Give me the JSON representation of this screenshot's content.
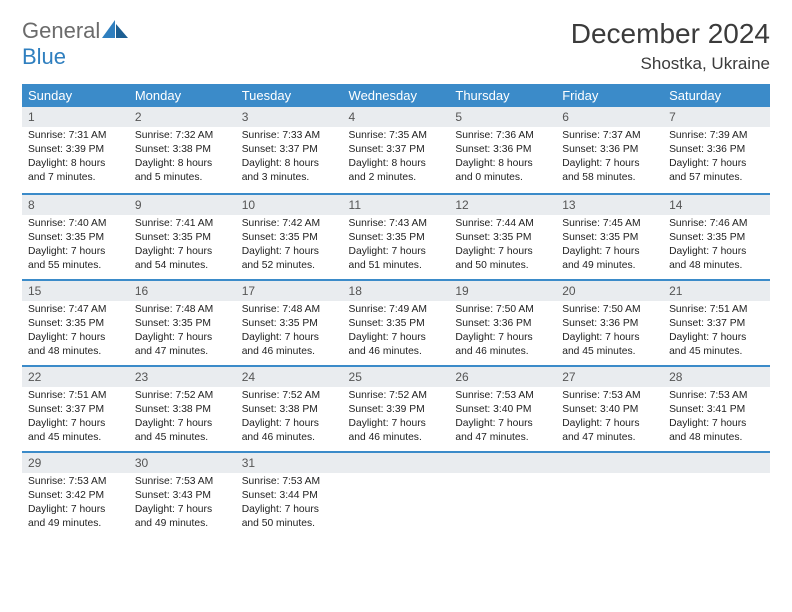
{
  "logo": {
    "text1": "General",
    "text2": "Blue"
  },
  "title": "December 2024",
  "location": "Shostka, Ukraine",
  "headers": [
    "Sunday",
    "Monday",
    "Tuesday",
    "Wednesday",
    "Thursday",
    "Friday",
    "Saturday"
  ],
  "colors": {
    "header_bg": "#3b8bc9",
    "header_text": "#ffffff",
    "daynum_bg": "#e9ecef",
    "row_divider": "#3b8bc9",
    "logo_gray": "#6b6b6b",
    "logo_blue": "#2f7fbf"
  },
  "weeks": [
    [
      {
        "n": "1",
        "sr": "7:31 AM",
        "ss": "3:39 PM",
        "dl": "8 hours and 7 minutes."
      },
      {
        "n": "2",
        "sr": "7:32 AM",
        "ss": "3:38 PM",
        "dl": "8 hours and 5 minutes."
      },
      {
        "n": "3",
        "sr": "7:33 AM",
        "ss": "3:37 PM",
        "dl": "8 hours and 3 minutes."
      },
      {
        "n": "4",
        "sr": "7:35 AM",
        "ss": "3:37 PM",
        "dl": "8 hours and 2 minutes."
      },
      {
        "n": "5",
        "sr": "7:36 AM",
        "ss": "3:36 PM",
        "dl": "8 hours and 0 minutes."
      },
      {
        "n": "6",
        "sr": "7:37 AM",
        "ss": "3:36 PM",
        "dl": "7 hours and 58 minutes."
      },
      {
        "n": "7",
        "sr": "7:39 AM",
        "ss": "3:36 PM",
        "dl": "7 hours and 57 minutes."
      }
    ],
    [
      {
        "n": "8",
        "sr": "7:40 AM",
        "ss": "3:35 PM",
        "dl": "7 hours and 55 minutes."
      },
      {
        "n": "9",
        "sr": "7:41 AM",
        "ss": "3:35 PM",
        "dl": "7 hours and 54 minutes."
      },
      {
        "n": "10",
        "sr": "7:42 AM",
        "ss": "3:35 PM",
        "dl": "7 hours and 52 minutes."
      },
      {
        "n": "11",
        "sr": "7:43 AM",
        "ss": "3:35 PM",
        "dl": "7 hours and 51 minutes."
      },
      {
        "n": "12",
        "sr": "7:44 AM",
        "ss": "3:35 PM",
        "dl": "7 hours and 50 minutes."
      },
      {
        "n": "13",
        "sr": "7:45 AM",
        "ss": "3:35 PM",
        "dl": "7 hours and 49 minutes."
      },
      {
        "n": "14",
        "sr": "7:46 AM",
        "ss": "3:35 PM",
        "dl": "7 hours and 48 minutes."
      }
    ],
    [
      {
        "n": "15",
        "sr": "7:47 AM",
        "ss": "3:35 PM",
        "dl": "7 hours and 48 minutes."
      },
      {
        "n": "16",
        "sr": "7:48 AM",
        "ss": "3:35 PM",
        "dl": "7 hours and 47 minutes."
      },
      {
        "n": "17",
        "sr": "7:48 AM",
        "ss": "3:35 PM",
        "dl": "7 hours and 46 minutes."
      },
      {
        "n": "18",
        "sr": "7:49 AM",
        "ss": "3:35 PM",
        "dl": "7 hours and 46 minutes."
      },
      {
        "n": "19",
        "sr": "7:50 AM",
        "ss": "3:36 PM",
        "dl": "7 hours and 46 minutes."
      },
      {
        "n": "20",
        "sr": "7:50 AM",
        "ss": "3:36 PM",
        "dl": "7 hours and 45 minutes."
      },
      {
        "n": "21",
        "sr": "7:51 AM",
        "ss": "3:37 PM",
        "dl": "7 hours and 45 minutes."
      }
    ],
    [
      {
        "n": "22",
        "sr": "7:51 AM",
        "ss": "3:37 PM",
        "dl": "7 hours and 45 minutes."
      },
      {
        "n": "23",
        "sr": "7:52 AM",
        "ss": "3:38 PM",
        "dl": "7 hours and 45 minutes."
      },
      {
        "n": "24",
        "sr": "7:52 AM",
        "ss": "3:38 PM",
        "dl": "7 hours and 46 minutes."
      },
      {
        "n": "25",
        "sr": "7:52 AM",
        "ss": "3:39 PM",
        "dl": "7 hours and 46 minutes."
      },
      {
        "n": "26",
        "sr": "7:53 AM",
        "ss": "3:40 PM",
        "dl": "7 hours and 47 minutes."
      },
      {
        "n": "27",
        "sr": "7:53 AM",
        "ss": "3:40 PM",
        "dl": "7 hours and 47 minutes."
      },
      {
        "n": "28",
        "sr": "7:53 AM",
        "ss": "3:41 PM",
        "dl": "7 hours and 48 minutes."
      }
    ],
    [
      {
        "n": "29",
        "sr": "7:53 AM",
        "ss": "3:42 PM",
        "dl": "7 hours and 49 minutes."
      },
      {
        "n": "30",
        "sr": "7:53 AM",
        "ss": "3:43 PM",
        "dl": "7 hours and 49 minutes."
      },
      {
        "n": "31",
        "sr": "7:53 AM",
        "ss": "3:44 PM",
        "dl": "7 hours and 50 minutes."
      },
      null,
      null,
      null,
      null
    ]
  ]
}
